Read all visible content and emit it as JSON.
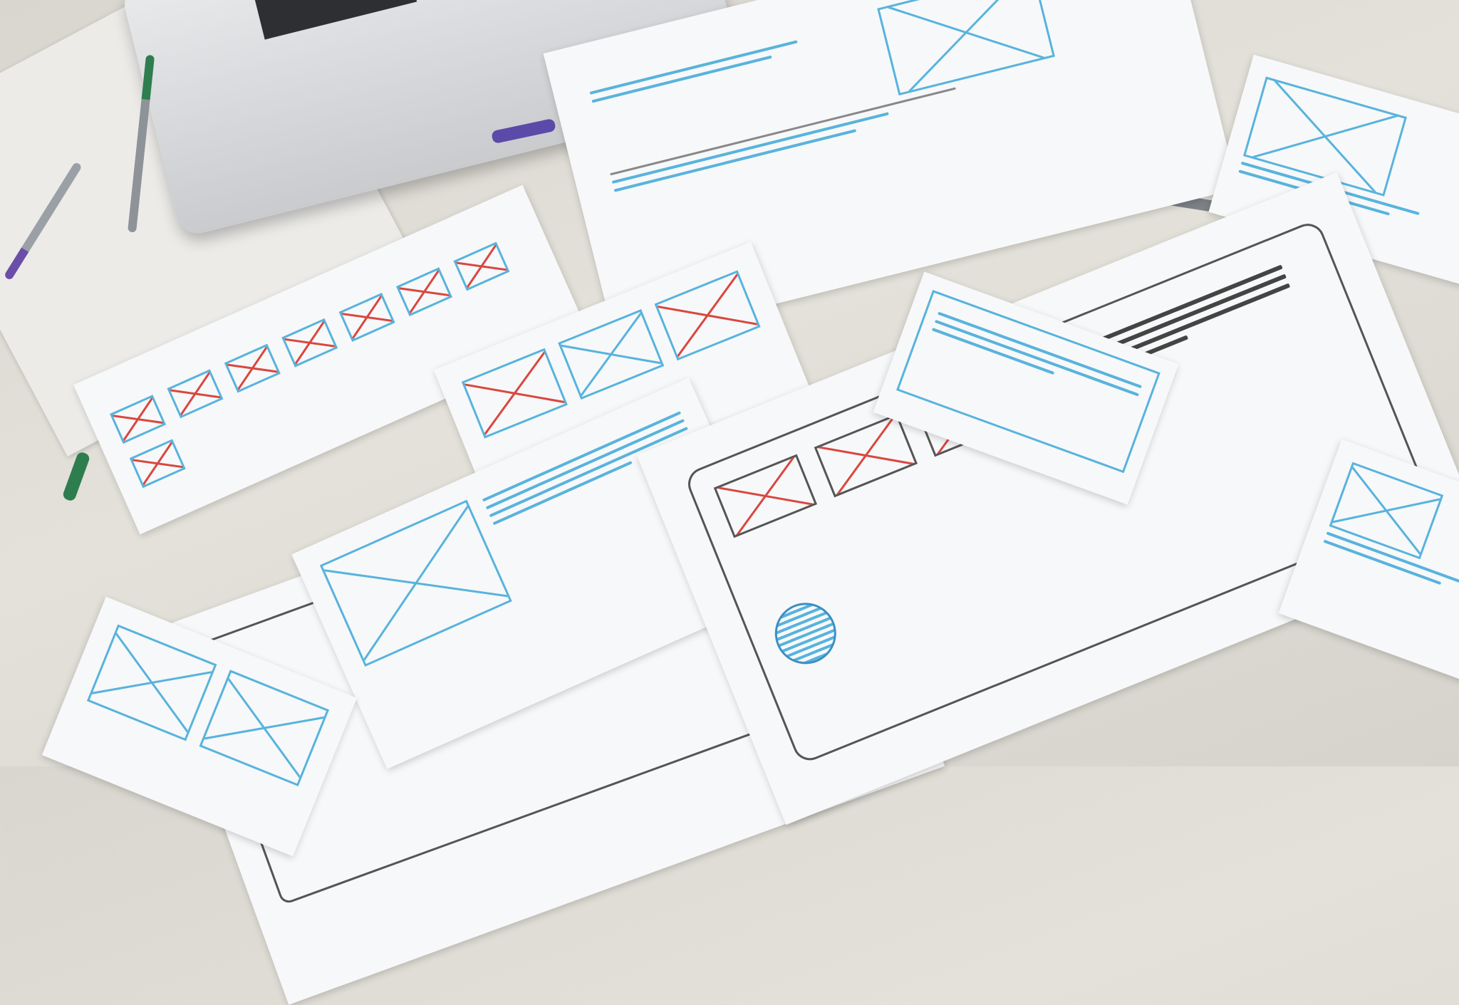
{
  "scene": {
    "description_colors": {
      "desk": "#dcd9d2",
      "paper": "#f7f8f9",
      "sketch_blue": "#58b3dd",
      "sketch_red": "#d9473f",
      "sketch_dark": "#444444",
      "laptop": "#d8d9dc"
    },
    "icons": [
      "laptop",
      "pen",
      "marker",
      "wireframe-sketch"
    ]
  }
}
